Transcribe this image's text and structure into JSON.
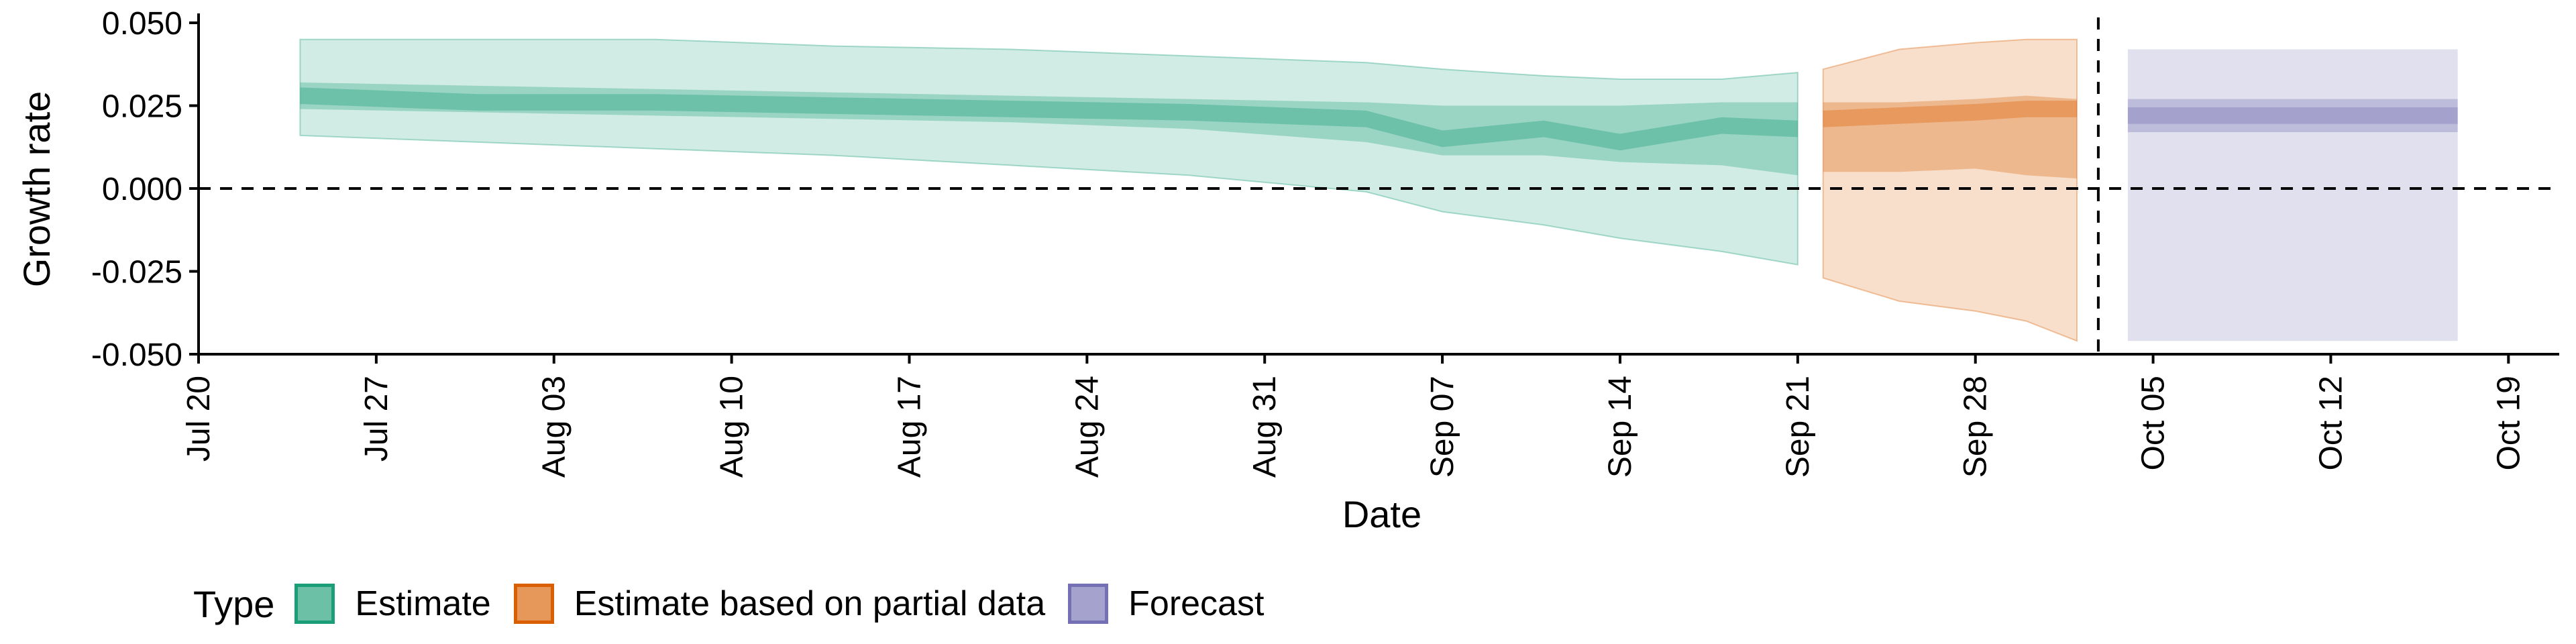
{
  "chart_data": {
    "type": "area",
    "xlabel": "Date",
    "ylabel": "Growth rate",
    "x_ticks": [
      "Jul 20",
      "Jul 27",
      "Aug 03",
      "Aug 10",
      "Aug 17",
      "Aug 24",
      "Aug 31",
      "Sep 07",
      "Sep 14",
      "Sep 21",
      "Sep 28",
      "Oct 05",
      "Oct 12",
      "Oct 19"
    ],
    "x_tick_dates": [
      "2020-07-20",
      "2020-07-27",
      "2020-08-03",
      "2020-08-10",
      "2020-08-17",
      "2020-08-24",
      "2020-08-31",
      "2020-09-07",
      "2020-09-14",
      "2020-09-21",
      "2020-09-28",
      "2020-10-05",
      "2020-10-12",
      "2020-10-19"
    ],
    "xlim": [
      "2020-07-20",
      "2020-10-21"
    ],
    "ylim": [
      -0.05,
      0.05
    ],
    "y_ticks": [
      "0.050",
      "0.025",
      "0.000",
      "-0.025",
      "-0.050"
    ],
    "y_tick_values": [
      0.05,
      0.025,
      0.0,
      -0.025,
      -0.05
    ],
    "reference_lines": [
      {
        "axis": "y",
        "value": 0.0,
        "style": "dashed"
      },
      {
        "axis": "x",
        "value": "2020-10-03",
        "style": "dashed"
      }
    ],
    "legend": {
      "title": "Type",
      "position": "bottom-left",
      "items": [
        "Estimate",
        "Estimate based on partial data",
        "Forecast"
      ]
    },
    "colors": {
      "Estimate": "#1b9e77",
      "Estimate based on partial data": "#d95f02",
      "Forecast": "#7570b3"
    },
    "series": [
      {
        "name": "Estimate",
        "dates": [
          "2020-07-24",
          "2020-07-31",
          "2020-08-07",
          "2020-08-14",
          "2020-08-21",
          "2020-08-28",
          "2020-09-04",
          "2020-09-07",
          "2020-09-11",
          "2020-09-14",
          "2020-09-18",
          "2020-09-21"
        ],
        "median": [
          0.028,
          0.026,
          0.026,
          0.025,
          0.024,
          0.023,
          0.021,
          0.015,
          0.018,
          0.014,
          0.019,
          0.018
        ],
        "lower_50": [
          0.024,
          0.023,
          0.022,
          0.021,
          0.02,
          0.018,
          0.014,
          0.01,
          0.01,
          0.008,
          0.007,
          0.004
        ],
        "upper_50": [
          0.032,
          0.031,
          0.03,
          0.029,
          0.028,
          0.027,
          0.026,
          0.025,
          0.025,
          0.025,
          0.026,
          0.026
        ],
        "lower_90": [
          0.016,
          0.014,
          0.012,
          0.01,
          0.007,
          0.004,
          -0.001,
          -0.007,
          -0.011,
          -0.015,
          -0.019,
          -0.023
        ],
        "upper_90": [
          0.045,
          0.045,
          0.045,
          0.043,
          0.042,
          0.04,
          0.038,
          0.036,
          0.034,
          0.033,
          0.033,
          0.035
        ]
      },
      {
        "name": "Estimate based on partial data",
        "dates": [
          "2020-09-22",
          "2020-09-25",
          "2020-09-28",
          "2020-09-30",
          "2020-10-02"
        ],
        "median": [
          0.021,
          0.022,
          0.023,
          0.024,
          0.024
        ],
        "lower_50": [
          0.005,
          0.005,
          0.006,
          0.004,
          0.003
        ],
        "upper_50": [
          0.026,
          0.026,
          0.027,
          0.028,
          0.027
        ],
        "lower_90": [
          -0.027,
          -0.034,
          -0.037,
          -0.04,
          -0.046
        ],
        "upper_90": [
          0.036,
          0.042,
          0.044,
          0.045,
          0.045
        ]
      },
      {
        "name": "Forecast",
        "dates": [
          "2020-10-03",
          "2020-10-17"
        ],
        "median": [
          0.022,
          0.022
        ],
        "lower_50": [
          0.017,
          0.017
        ],
        "upper_50": [
          0.027,
          0.027
        ],
        "lower_90": [
          -0.046,
          -0.046
        ],
        "upper_90": [
          0.042,
          0.042
        ]
      }
    ]
  }
}
